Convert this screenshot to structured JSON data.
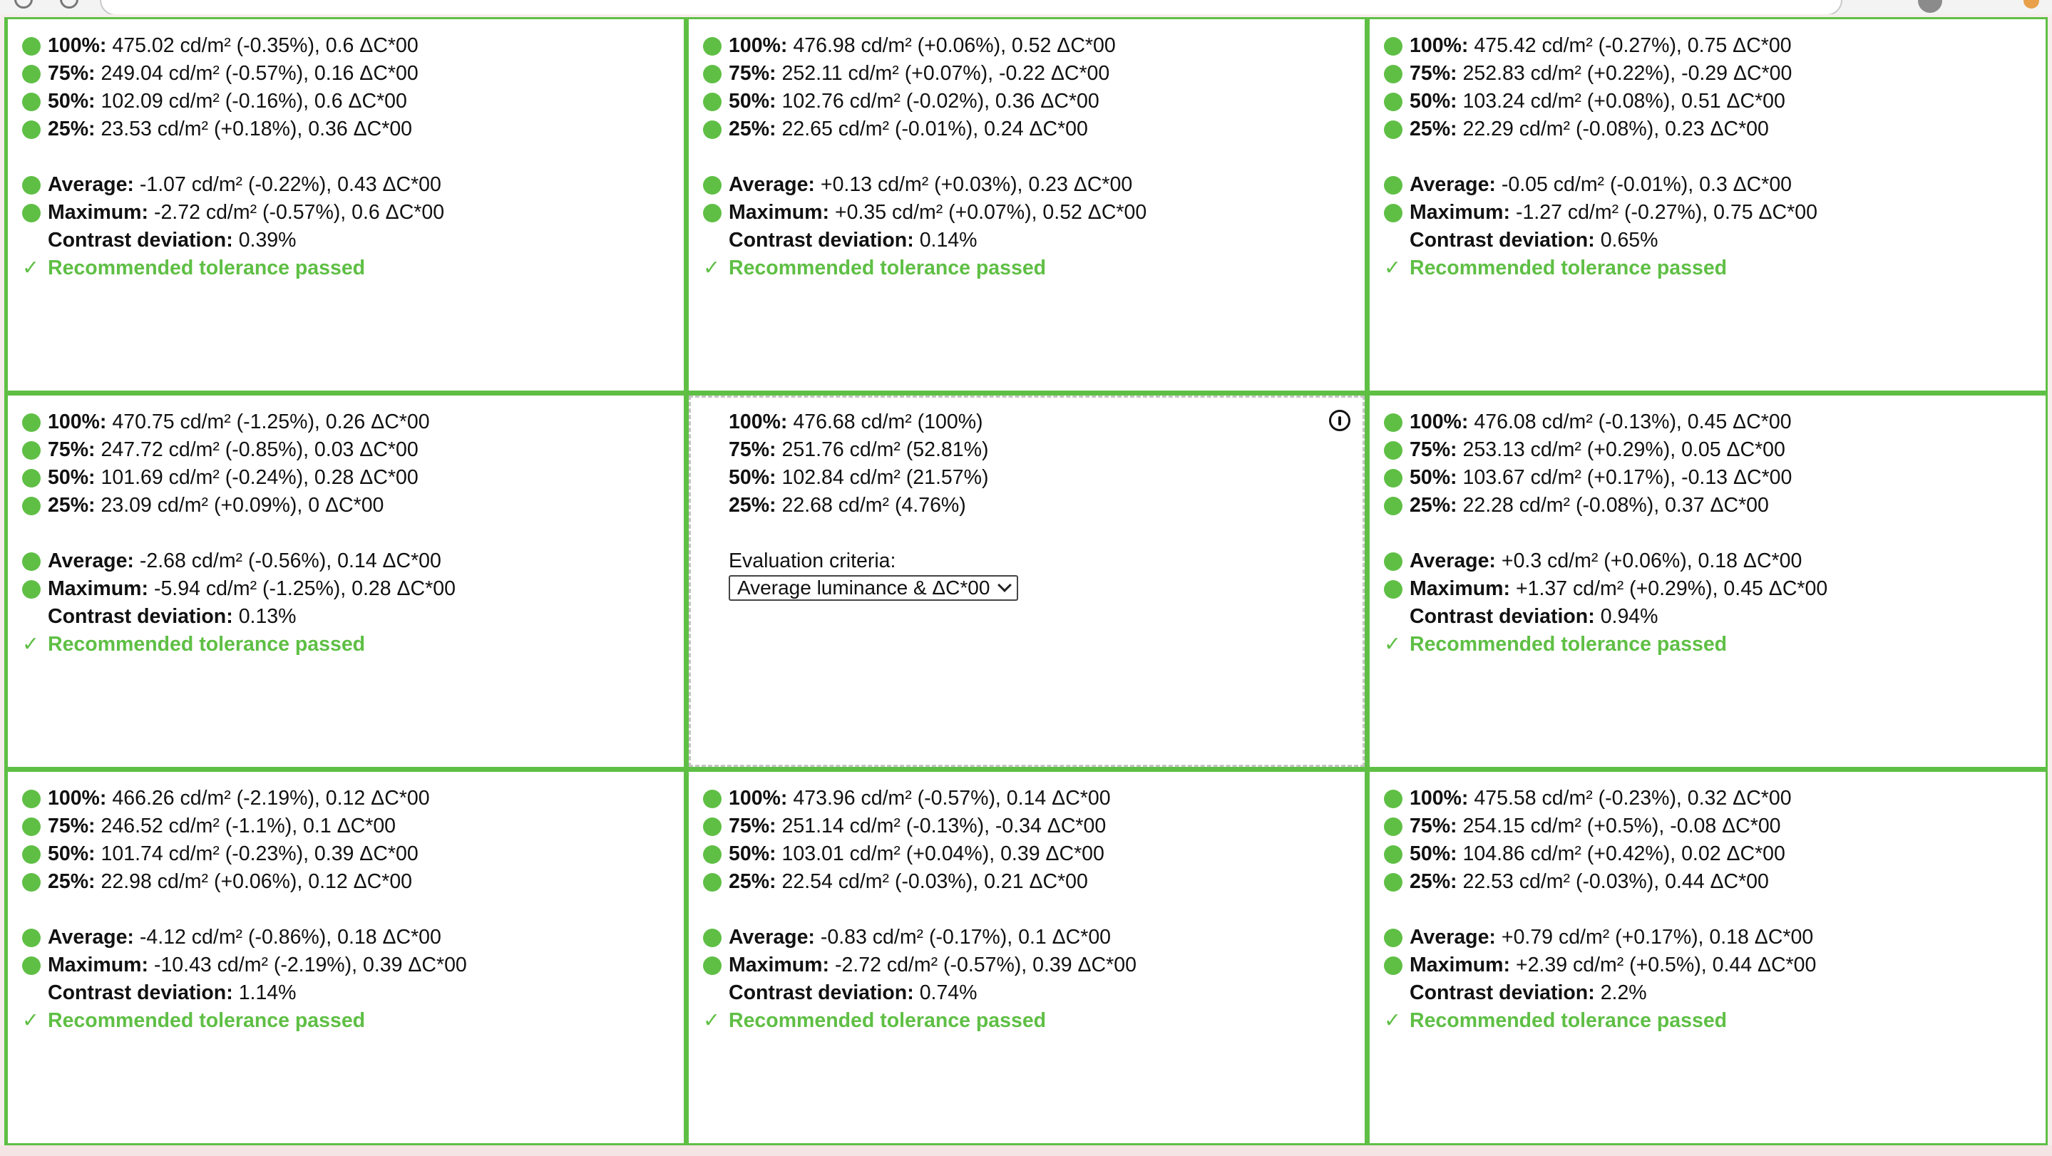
{
  "colors": {
    "accent_green": "#5fbf45",
    "border_gray": "#c4c4c4"
  },
  "icons": {
    "status": "green-dot-icon",
    "pass": "check-icon",
    "info": "info-icon",
    "dropdown": "chevron-down-icon"
  },
  "center": {
    "rows": [
      {
        "label": "100%:",
        "value": "476.68 cd/m² (100%)"
      },
      {
        "label": "75%:",
        "value": "251.76 cd/m² (52.81%)"
      },
      {
        "label": "50%:",
        "value": "102.84 cd/m² (21.57%)"
      },
      {
        "label": "25%:",
        "value": "22.68 cd/m² (4.76%)"
      }
    ],
    "criteria_label": "Evaluation criteria:",
    "criteria_selected": "Average luminance & ΔC*00"
  },
  "cells": [
    {
      "rows": [
        {
          "label": "100%:",
          "value": "475.02 cd/m² (-0.35%), 0.6 ΔC*00"
        },
        {
          "label": "75%:",
          "value": "249.04 cd/m² (-0.57%), 0.16 ΔC*00"
        },
        {
          "label": "50%:",
          "value": "102.09 cd/m² (-0.16%), 0.6 ΔC*00"
        },
        {
          "label": "25%:",
          "value": "23.53 cd/m² (+0.18%), 0.36 ΔC*00"
        }
      ],
      "average": {
        "label": "Average:",
        "value": "-1.07 cd/m² (-0.22%), 0.43 ΔC*00"
      },
      "maximum": {
        "label": "Maximum:",
        "value": "-2.72 cd/m² (-0.57%), 0.6 ΔC*00"
      },
      "contrast": {
        "label": "Contrast deviation:",
        "value": "0.39%"
      },
      "status": "Recommended tolerance passed"
    },
    {
      "rows": [
        {
          "label": "100%:",
          "value": "476.98 cd/m² (+0.06%), 0.52 ΔC*00"
        },
        {
          "label": "75%:",
          "value": "252.11 cd/m² (+0.07%), -0.22 ΔC*00"
        },
        {
          "label": "50%:",
          "value": "102.76 cd/m² (-0.02%), 0.36 ΔC*00"
        },
        {
          "label": "25%:",
          "value": "22.65 cd/m² (-0.01%), 0.24 ΔC*00"
        }
      ],
      "average": {
        "label": "Average:",
        "value": "+0.13 cd/m² (+0.03%), 0.23 ΔC*00"
      },
      "maximum": {
        "label": "Maximum:",
        "value": "+0.35 cd/m² (+0.07%), 0.52 ΔC*00"
      },
      "contrast": {
        "label": "Contrast deviation:",
        "value": "0.14%"
      },
      "status": "Recommended tolerance passed"
    },
    {
      "rows": [
        {
          "label": "100%:",
          "value": "475.42 cd/m² (-0.27%), 0.75 ΔC*00"
        },
        {
          "label": "75%:",
          "value": "252.83 cd/m² (+0.22%), -0.29 ΔC*00"
        },
        {
          "label": "50%:",
          "value": "103.24 cd/m² (+0.08%), 0.51 ΔC*00"
        },
        {
          "label": "25%:",
          "value": "22.29 cd/m² (-0.08%), 0.23 ΔC*00"
        }
      ],
      "average": {
        "label": "Average:",
        "value": "-0.05 cd/m² (-0.01%), 0.3 ΔC*00"
      },
      "maximum": {
        "label": "Maximum:",
        "value": "-1.27 cd/m² (-0.27%), 0.75 ΔC*00"
      },
      "contrast": {
        "label": "Contrast deviation:",
        "value": "0.65%"
      },
      "status": "Recommended tolerance passed"
    },
    {
      "rows": [
        {
          "label": "100%:",
          "value": "470.75 cd/m² (-1.25%), 0.26 ΔC*00"
        },
        {
          "label": "75%:",
          "value": "247.72 cd/m² (-0.85%), 0.03 ΔC*00"
        },
        {
          "label": "50%:",
          "value": "101.69 cd/m² (-0.24%), 0.28 ΔC*00"
        },
        {
          "label": "25%:",
          "value": "23.09 cd/m² (+0.09%), 0 ΔC*00"
        }
      ],
      "average": {
        "label": "Average:",
        "value": "-2.68 cd/m² (-0.56%), 0.14 ΔC*00"
      },
      "maximum": {
        "label": "Maximum:",
        "value": "-5.94 cd/m² (-1.25%), 0.28 ΔC*00"
      },
      "contrast": {
        "label": "Contrast deviation:",
        "value": "0.13%"
      },
      "status": "Recommended tolerance passed"
    },
    {
      "rows": [
        {
          "label": "100%:",
          "value": "476.08 cd/m² (-0.13%), 0.45 ΔC*00"
        },
        {
          "label": "75%:",
          "value": "253.13 cd/m² (+0.29%), 0.05 ΔC*00"
        },
        {
          "label": "50%:",
          "value": "103.67 cd/m² (+0.17%), -0.13 ΔC*00"
        },
        {
          "label": "25%:",
          "value": "22.28 cd/m² (-0.08%), 0.37 ΔC*00"
        }
      ],
      "average": {
        "label": "Average:",
        "value": "+0.3 cd/m² (+0.06%), 0.18 ΔC*00"
      },
      "maximum": {
        "label": "Maximum:",
        "value": "+1.37 cd/m² (+0.29%), 0.45 ΔC*00"
      },
      "contrast": {
        "label": "Contrast deviation:",
        "value": "0.94%"
      },
      "status": "Recommended tolerance passed"
    },
    {
      "rows": [
        {
          "label": "100%:",
          "value": "466.26 cd/m² (-2.19%), 0.12 ΔC*00"
        },
        {
          "label": "75%:",
          "value": "246.52 cd/m² (-1.1%), 0.1 ΔC*00"
        },
        {
          "label": "50%:",
          "value": "101.74 cd/m² (-0.23%), 0.39 ΔC*00"
        },
        {
          "label": "25%:",
          "value": "22.98 cd/m² (+0.06%), 0.12 ΔC*00"
        }
      ],
      "average": {
        "label": "Average:",
        "value": "-4.12 cd/m² (-0.86%), 0.18 ΔC*00"
      },
      "maximum": {
        "label": "Maximum:",
        "value": "-10.43 cd/m² (-2.19%), 0.39 ΔC*00"
      },
      "contrast": {
        "label": "Contrast deviation:",
        "value": "1.14%"
      },
      "status": "Recommended tolerance passed"
    },
    {
      "rows": [
        {
          "label": "100%:",
          "value": "473.96 cd/m² (-0.57%), 0.14 ΔC*00"
        },
        {
          "label": "75%:",
          "value": "251.14 cd/m² (-0.13%), -0.34 ΔC*00"
        },
        {
          "label": "50%:",
          "value": "103.01 cd/m² (+0.04%), 0.39 ΔC*00"
        },
        {
          "label": "25%:",
          "value": "22.54 cd/m² (-0.03%), 0.21 ΔC*00"
        }
      ],
      "average": {
        "label": "Average:",
        "value": "-0.83 cd/m² (-0.17%), 0.1 ΔC*00"
      },
      "maximum": {
        "label": "Maximum:",
        "value": "-2.72 cd/m² (-0.57%), 0.39 ΔC*00"
      },
      "contrast": {
        "label": "Contrast deviation:",
        "value": "0.74%"
      },
      "status": "Recommended tolerance passed"
    },
    {
      "rows": [
        {
          "label": "100%:",
          "value": "475.58 cd/m² (-0.23%), 0.32 ΔC*00"
        },
        {
          "label": "75%:",
          "value": "254.15 cd/m² (+0.5%), -0.08 ΔC*00"
        },
        {
          "label": "50%:",
          "value": "104.86 cd/m² (+0.42%), 0.02 ΔC*00"
        },
        {
          "label": "25%:",
          "value": "22.53 cd/m² (-0.03%), 0.44 ΔC*00"
        }
      ],
      "average": {
        "label": "Average:",
        "value": "+0.79 cd/m² (+0.17%), 0.18 ΔC*00"
      },
      "maximum": {
        "label": "Maximum:",
        "value": "+2.39 cd/m² (+0.5%), 0.44 ΔC*00"
      },
      "contrast": {
        "label": "Contrast deviation:",
        "value": "2.2%"
      },
      "status": "Recommended tolerance passed"
    }
  ]
}
